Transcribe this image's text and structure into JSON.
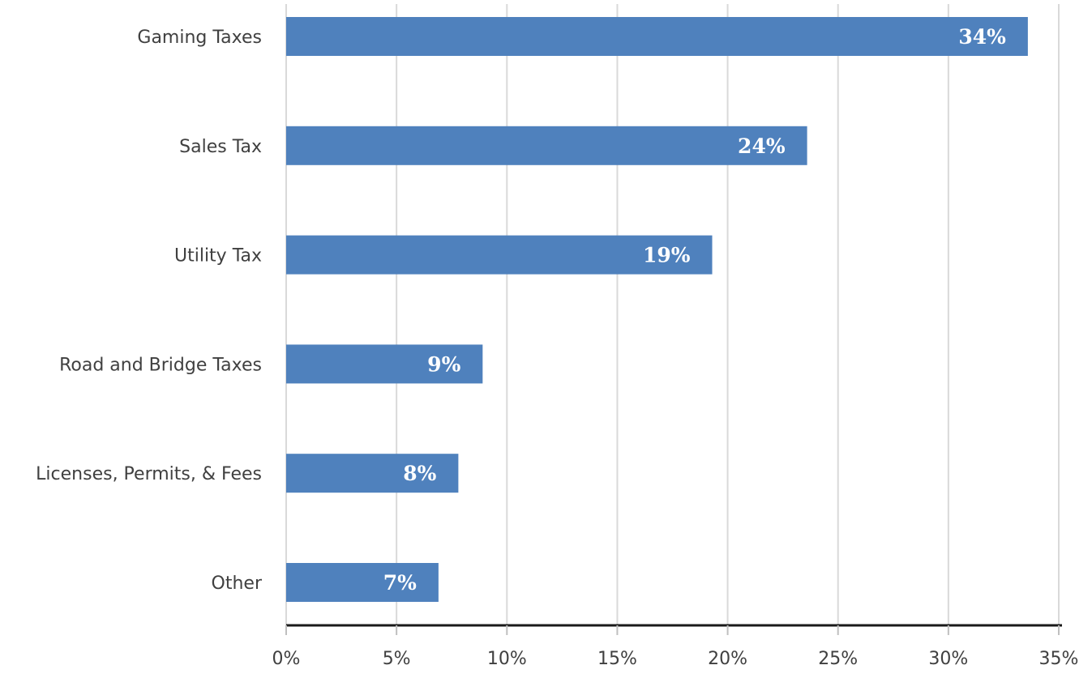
{
  "chart_data": {
    "type": "bar",
    "orientation": "horizontal",
    "categories": [
      "Gaming Taxes",
      "Sales Tax",
      "Utility Tax",
      "Road and Bridge Taxes",
      "Licenses, Permits, & Fees",
      "Other"
    ],
    "values": [
      33.6,
      23.6,
      19.3,
      8.9,
      7.8,
      6.9
    ],
    "data_labels": [
      "34%",
      "24%",
      "19%",
      "9%",
      "8%",
      "7%"
    ],
    "x_ticks": [
      0,
      5,
      10,
      15,
      20,
      25,
      30,
      35
    ],
    "x_tick_labels": [
      "0%",
      "5%",
      "10%",
      "15%",
      "20%",
      "25%",
      "30%",
      "35%"
    ],
    "xlim": [
      0,
      35
    ],
    "grid": true,
    "legend": "none",
    "bar_color": "#4f81bd",
    "label_color": "#ffffff"
  }
}
